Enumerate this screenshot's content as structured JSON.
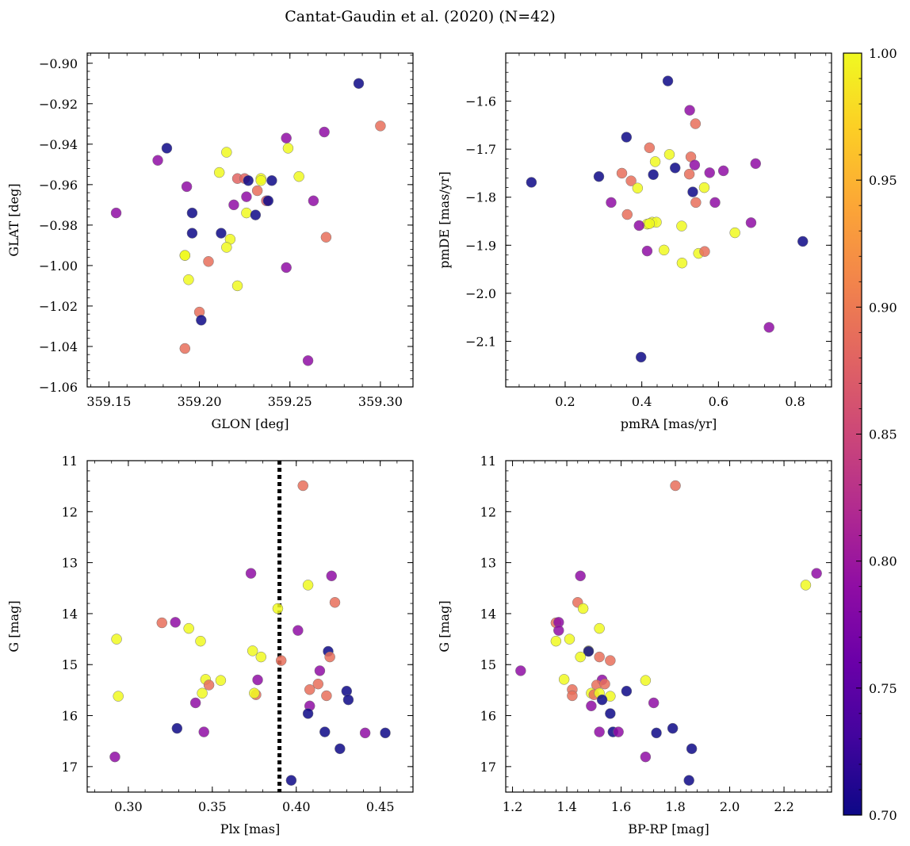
{
  "figure": {
    "title": "Cantat-Gaudin et al. (2020) (N=42)"
  },
  "colorbar": {
    "colormap": "plasma",
    "vmin": 0.7,
    "vmax": 1.0,
    "ticks": [
      "0.70",
      "0.75",
      "0.80",
      "0.85",
      "0.90",
      "0.95",
      "1.00"
    ]
  },
  "chart_data": [
    {
      "type": "scatter",
      "id": "glon-glat",
      "xlabel": "GLON [deg]",
      "ylabel": "GLAT [deg]",
      "xlim": [
        359.138,
        359.318
      ],
      "ylim": [
        -1.06,
        -0.895
      ],
      "xticks": [
        "359.15",
        "359.20",
        "359.25",
        "359.30"
      ],
      "yticks": [
        "−0.90",
        "−0.92",
        "−0.94",
        "−0.96",
        "−0.98",
        "−1.00",
        "−1.02",
        "−1.04",
        "−1.06"
      ],
      "points": [
        {
          "x": 359.288,
          "y": -0.91,
          "c": 0.7
        },
        {
          "x": 359.3,
          "y": -0.931,
          "c": 0.89
        },
        {
          "x": 359.248,
          "y": -0.937,
          "c": 0.79
        },
        {
          "x": 359.269,
          "y": -0.934,
          "c": 0.79
        },
        {
          "x": 359.182,
          "y": -0.942,
          "c": 0.7
        },
        {
          "x": 359.215,
          "y": -0.944,
          "c": 1.0
        },
        {
          "x": 359.249,
          "y": -0.942,
          "c": 1.0
        },
        {
          "x": 359.177,
          "y": -0.948,
          "c": 0.79
        },
        {
          "x": 359.211,
          "y": -0.954,
          "c": 1.0
        },
        {
          "x": 359.255,
          "y": -0.956,
          "c": 1.0
        },
        {
          "x": 359.221,
          "y": -0.957,
          "c": 0.88
        },
        {
          "x": 359.225,
          "y": -0.957,
          "c": 0.88
        },
        {
          "x": 359.227,
          "y": -0.958,
          "c": 0.7
        },
        {
          "x": 359.234,
          "y": -0.957,
          "c": 1.0
        },
        {
          "x": 359.24,
          "y": -0.958,
          "c": 0.7
        },
        {
          "x": 359.193,
          "y": -0.961,
          "c": 0.79
        },
        {
          "x": 359.232,
          "y": -0.963,
          "c": 0.89
        },
        {
          "x": 359.226,
          "y": -0.966,
          "c": 0.79
        },
        {
          "x": 359.237,
          "y": -0.968,
          "c": 0.87
        },
        {
          "x": 359.238,
          "y": -0.968,
          "c": 0.7
        },
        {
          "x": 359.263,
          "y": -0.968,
          "c": 0.79
        },
        {
          "x": 359.219,
          "y": -0.97,
          "c": 0.79
        },
        {
          "x": 359.154,
          "y": -0.974,
          "c": 0.79
        },
        {
          "x": 359.196,
          "y": -0.974,
          "c": 0.7
        },
        {
          "x": 359.226,
          "y": -0.974,
          "c": 1.0
        },
        {
          "x": 359.231,
          "y": -0.975,
          "c": 0.7
        },
        {
          "x": 359.196,
          "y": -0.984,
          "c": 0.7
        },
        {
          "x": 359.212,
          "y": -0.984,
          "c": 0.7
        },
        {
          "x": 359.217,
          "y": -0.987,
          "c": 1.0
        },
        {
          "x": 359.27,
          "y": -0.986,
          "c": 0.89
        },
        {
          "x": 359.215,
          "y": -0.991,
          "c": 1.0
        },
        {
          "x": 359.192,
          "y": -0.995,
          "c": 1.0
        },
        {
          "x": 359.205,
          "y": -0.998,
          "c": 0.89
        },
        {
          "x": 359.248,
          "y": -1.001,
          "c": 0.79
        },
        {
          "x": 359.194,
          "y": -1.007,
          "c": 1.0
        },
        {
          "x": 359.221,
          "y": -1.01,
          "c": 1.0
        },
        {
          "x": 359.2,
          "y": -1.023,
          "c": 0.89
        },
        {
          "x": 359.201,
          "y": -1.027,
          "c": 0.7
        },
        {
          "x": 359.192,
          "y": -1.041,
          "c": 0.89
        },
        {
          "x": 359.26,
          "y": -1.047,
          "c": 0.79
        },
        {
          "x": 359.192,
          "y": -0.995,
          "c": 1.0
        },
        {
          "x": 359.234,
          "y": -0.958,
          "c": 1.0
        }
      ]
    },
    {
      "type": "scatter",
      "id": "pmra-pmde",
      "xlabel": "pmRA [mas/yr]",
      "ylabel": "pmDE [mas/yr]",
      "xlim": [
        0.045,
        0.895
      ],
      "ylim": [
        -2.195,
        -1.5
      ],
      "xticks": [
        "0.2",
        "0.4",
        "0.6",
        "0.8"
      ],
      "yticks": [
        "−1.6",
        "−1.7",
        "−1.8",
        "−1.9",
        "−2.0",
        "−2.1"
      ],
      "points": [
        {
          "x": 0.468,
          "y": -1.558,
          "c": 0.7
        },
        {
          "x": 0.525,
          "y": -1.619,
          "c": 0.79
        },
        {
          "x": 0.54,
          "y": -1.647,
          "c": 0.89
        },
        {
          "x": 0.36,
          "y": -1.675,
          "c": 0.7
        },
        {
          "x": 0.42,
          "y": -1.697,
          "c": 0.89
        },
        {
          "x": 0.472,
          "y": -1.711,
          "c": 1.0
        },
        {
          "x": 0.528,
          "y": -1.716,
          "c": 0.89
        },
        {
          "x": 0.435,
          "y": -1.726,
          "c": 1.0
        },
        {
          "x": 0.697,
          "y": -1.73,
          "c": 0.79
        },
        {
          "x": 0.487,
          "y": -1.739,
          "c": 0.7
        },
        {
          "x": 0.538,
          "y": -1.733,
          "c": 0.79
        },
        {
          "x": 0.613,
          "y": -1.745,
          "c": 0.79
        },
        {
          "x": 0.577,
          "y": -1.749,
          "c": 0.79
        },
        {
          "x": 0.348,
          "y": -1.75,
          "c": 0.89
        },
        {
          "x": 0.43,
          "y": -1.753,
          "c": 0.7
        },
        {
          "x": 0.524,
          "y": -1.752,
          "c": 0.89
        },
        {
          "x": 0.288,
          "y": -1.757,
          "c": 0.7
        },
        {
          "x": 0.372,
          "y": -1.766,
          "c": 0.89
        },
        {
          "x": 0.112,
          "y": -1.769,
          "c": 0.7
        },
        {
          "x": 0.389,
          "y": -1.781,
          "c": 1.0
        },
        {
          "x": 0.563,
          "y": -1.78,
          "c": 1.0
        },
        {
          "x": 0.533,
          "y": -1.789,
          "c": 0.7
        },
        {
          "x": 0.32,
          "y": -1.811,
          "c": 0.79
        },
        {
          "x": 0.541,
          "y": -1.811,
          "c": 0.89
        },
        {
          "x": 0.591,
          "y": -1.811,
          "c": 0.79
        },
        {
          "x": 0.362,
          "y": -1.836,
          "c": 0.89
        },
        {
          "x": 0.427,
          "y": -1.852,
          "c": 1.0
        },
        {
          "x": 0.438,
          "y": -1.852,
          "c": 1.0
        },
        {
          "x": 0.685,
          "y": -1.853,
          "c": 0.79
        },
        {
          "x": 0.414,
          "y": -1.856,
          "c": 1.0
        },
        {
          "x": 0.393,
          "y": -1.859,
          "c": 0.79
        },
        {
          "x": 0.504,
          "y": -1.86,
          "c": 1.0
        },
        {
          "x": 0.643,
          "y": -1.874,
          "c": 1.0
        },
        {
          "x": 0.82,
          "y": -1.892,
          "c": 0.7
        },
        {
          "x": 0.414,
          "y": -1.912,
          "c": 0.79
        },
        {
          "x": 0.458,
          "y": -1.91,
          "c": 1.0
        },
        {
          "x": 0.548,
          "y": -1.917,
          "c": 1.0
        },
        {
          "x": 0.564,
          "y": -1.913,
          "c": 0.89
        },
        {
          "x": 0.505,
          "y": -1.937,
          "c": 1.0
        },
        {
          "x": 0.732,
          "y": -2.071,
          "c": 0.79
        },
        {
          "x": 0.398,
          "y": -2.133,
          "c": 0.7
        },
        {
          "x": 0.42,
          "y": -1.855,
          "c": 1.0
        }
      ]
    },
    {
      "type": "scatter",
      "id": "plx-g",
      "xlabel": "Plx [mas]",
      "ylabel": "G [mag]",
      "xlim": [
        0.2755,
        0.4695
      ],
      "ylim": [
        17.5,
        11.0
      ],
      "xticks": [
        "0.30",
        "0.35",
        "0.40",
        "0.45"
      ],
      "yticks": [
        "11",
        "12",
        "13",
        "14",
        "15",
        "16",
        "17"
      ],
      "vline": 0.39,
      "points": [
        {
          "x": 0.404,
          "y": 11.49,
          "c": 0.89
        },
        {
          "x": 0.373,
          "y": 13.21,
          "c": 0.79
        },
        {
          "x": 0.421,
          "y": 13.26,
          "c": 0.79
        },
        {
          "x": 0.407,
          "y": 13.44,
          "c": 1.0
        },
        {
          "x": 0.423,
          "y": 13.78,
          "c": 0.89
        },
        {
          "x": 0.389,
          "y": 13.9,
          "c": 1.0
        },
        {
          "x": 0.32,
          "y": 14.18,
          "c": 0.89
        },
        {
          "x": 0.328,
          "y": 14.17,
          "c": 0.79
        },
        {
          "x": 0.336,
          "y": 14.29,
          "c": 1.0
        },
        {
          "x": 0.401,
          "y": 14.33,
          "c": 0.79
        },
        {
          "x": 0.293,
          "y": 14.5,
          "c": 1.0
        },
        {
          "x": 0.343,
          "y": 14.54,
          "c": 1.0
        },
        {
          "x": 0.374,
          "y": 14.73,
          "c": 1.0
        },
        {
          "x": 0.419,
          "y": 14.74,
          "c": 0.7
        },
        {
          "x": 0.379,
          "y": 14.85,
          "c": 1.0
        },
        {
          "x": 0.42,
          "y": 14.85,
          "c": 0.89
        },
        {
          "x": 0.391,
          "y": 14.92,
          "c": 0.89
        },
        {
          "x": 0.414,
          "y": 15.12,
          "c": 0.79
        },
        {
          "x": 0.346,
          "y": 15.29,
          "c": 1.0
        },
        {
          "x": 0.355,
          "y": 15.31,
          "c": 1.0
        },
        {
          "x": 0.377,
          "y": 15.3,
          "c": 0.79
        },
        {
          "x": 0.348,
          "y": 15.4,
          "c": 0.89
        },
        {
          "x": 0.413,
          "y": 15.38,
          "c": 0.89
        },
        {
          "x": 0.408,
          "y": 15.49,
          "c": 0.89
        },
        {
          "x": 0.43,
          "y": 15.52,
          "c": 0.7
        },
        {
          "x": 0.344,
          "y": 15.56,
          "c": 1.0
        },
        {
          "x": 0.376,
          "y": 15.59,
          "c": 0.89
        },
        {
          "x": 0.375,
          "y": 15.56,
          "c": 1.0
        },
        {
          "x": 0.294,
          "y": 15.62,
          "c": 1.0
        },
        {
          "x": 0.418,
          "y": 15.61,
          "c": 0.89
        },
        {
          "x": 0.431,
          "y": 15.69,
          "c": 0.7
        },
        {
          "x": 0.34,
          "y": 15.75,
          "c": 0.79
        },
        {
          "x": 0.408,
          "y": 15.81,
          "c": 0.79
        },
        {
          "x": 0.407,
          "y": 15.96,
          "c": 0.7
        },
        {
          "x": 0.329,
          "y": 16.25,
          "c": 0.7
        },
        {
          "x": 0.345,
          "y": 16.32,
          "c": 0.79
        },
        {
          "x": 0.417,
          "y": 16.32,
          "c": 0.7
        },
        {
          "x": 0.441,
          "y": 16.34,
          "c": 0.79
        },
        {
          "x": 0.453,
          "y": 16.34,
          "c": 0.7
        },
        {
          "x": 0.426,
          "y": 16.65,
          "c": 0.7
        },
        {
          "x": 0.292,
          "y": 16.81,
          "c": 0.79
        },
        {
          "x": 0.397,
          "y": 17.27,
          "c": 0.7
        }
      ]
    },
    {
      "type": "scatter",
      "id": "bprp-g",
      "xlabel": "BP-RP [mag]",
      "ylabel": "G [mag]",
      "xlim": [
        1.175,
        2.375
      ],
      "ylim": [
        17.5,
        11.0
      ],
      "xticks": [
        "1.2",
        "1.4",
        "1.6",
        "1.8",
        "2.0",
        "2.2"
      ],
      "yticks": [
        "11",
        "12",
        "13",
        "14",
        "15",
        "16",
        "17"
      ],
      "points": [
        {
          "x": 1.8,
          "y": 11.49,
          "c": 0.89
        },
        {
          "x": 2.32,
          "y": 13.21,
          "c": 0.79
        },
        {
          "x": 1.45,
          "y": 13.26,
          "c": 0.79
        },
        {
          "x": 2.28,
          "y": 13.44,
          "c": 1.0
        },
        {
          "x": 1.44,
          "y": 13.78,
          "c": 0.89
        },
        {
          "x": 1.46,
          "y": 13.9,
          "c": 1.0
        },
        {
          "x": 1.36,
          "y": 14.18,
          "c": 0.89
        },
        {
          "x": 1.37,
          "y": 14.17,
          "c": 0.79
        },
        {
          "x": 1.52,
          "y": 14.29,
          "c": 1.0
        },
        {
          "x": 1.37,
          "y": 14.33,
          "c": 0.79
        },
        {
          "x": 1.41,
          "y": 14.5,
          "c": 1.0
        },
        {
          "x": 1.36,
          "y": 14.54,
          "c": 1.0
        },
        {
          "x": 1.48,
          "y": 14.73,
          "c": 1.0
        },
        {
          "x": 1.48,
          "y": 14.74,
          "c": 0.7
        },
        {
          "x": 1.45,
          "y": 14.85,
          "c": 1.0
        },
        {
          "x": 1.52,
          "y": 14.85,
          "c": 0.89
        },
        {
          "x": 1.56,
          "y": 14.92,
          "c": 0.89
        },
        {
          "x": 1.23,
          "y": 15.12,
          "c": 0.79
        },
        {
          "x": 1.39,
          "y": 15.29,
          "c": 1.0
        },
        {
          "x": 1.69,
          "y": 15.31,
          "c": 1.0
        },
        {
          "x": 1.53,
          "y": 15.3,
          "c": 0.79
        },
        {
          "x": 1.51,
          "y": 15.4,
          "c": 0.89
        },
        {
          "x": 1.54,
          "y": 15.38,
          "c": 0.89
        },
        {
          "x": 1.42,
          "y": 15.49,
          "c": 0.89
        },
        {
          "x": 1.62,
          "y": 15.52,
          "c": 0.7
        },
        {
          "x": 1.49,
          "y": 15.56,
          "c": 1.0
        },
        {
          "x": 1.5,
          "y": 15.59,
          "c": 0.89
        },
        {
          "x": 1.52,
          "y": 15.56,
          "c": 1.0
        },
        {
          "x": 1.56,
          "y": 15.62,
          "c": 1.0
        },
        {
          "x": 1.42,
          "y": 15.61,
          "c": 0.89
        },
        {
          "x": 1.53,
          "y": 15.69,
          "c": 0.7
        },
        {
          "x": 1.72,
          "y": 15.75,
          "c": 0.79
        },
        {
          "x": 1.49,
          "y": 15.81,
          "c": 0.79
        },
        {
          "x": 1.56,
          "y": 15.96,
          "c": 0.7
        },
        {
          "x": 1.79,
          "y": 16.25,
          "c": 0.7
        },
        {
          "x": 1.52,
          "y": 16.32,
          "c": 0.79
        },
        {
          "x": 1.57,
          "y": 16.32,
          "c": 0.7
        },
        {
          "x": 1.59,
          "y": 16.32,
          "c": 0.79
        },
        {
          "x": 1.73,
          "y": 16.34,
          "c": 0.7
        },
        {
          "x": 1.86,
          "y": 16.65,
          "c": 0.7
        },
        {
          "x": 1.69,
          "y": 16.81,
          "c": 0.79
        },
        {
          "x": 1.85,
          "y": 17.27,
          "c": 0.7
        }
      ]
    }
  ]
}
